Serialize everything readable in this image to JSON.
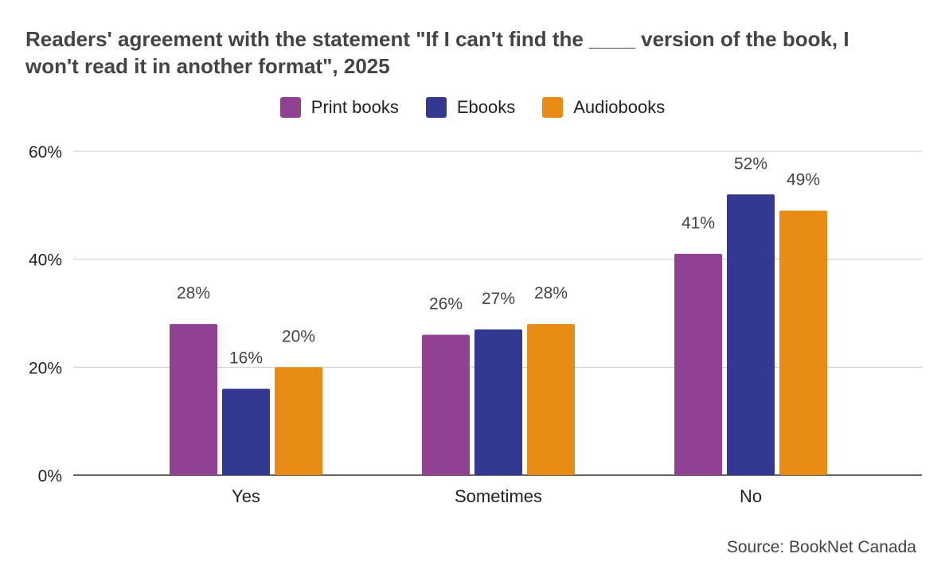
{
  "chart_data": {
    "type": "bar",
    "title": "Readers' agreement with the statement \"If I can't find the ____ version of the book, I won't read it in another format\", 2025",
    "categories": [
      "Yes",
      "Sometimes",
      "No"
    ],
    "series": [
      {
        "name": "Print books",
        "color": "#914192",
        "values": [
          28,
          26,
          41
        ],
        "labels": [
          "28%",
          "26%",
          "41%"
        ]
      },
      {
        "name": "Ebooks",
        "color": "#353891",
        "values": [
          16,
          27,
          52
        ],
        "labels": [
          "16%",
          "27%",
          "52%"
        ]
      },
      {
        "name": "Audiobooks",
        "color": "#e88c15",
        "values": [
          20,
          28,
          49
        ],
        "labels": [
          "20%",
          "28%",
          "49%"
        ]
      }
    ],
    "ylim": [
      0,
      60
    ],
    "yticks": [
      0,
      20,
      40,
      60
    ],
    "ytick_labels": [
      "0%",
      "20%",
      "40%",
      "60%"
    ],
    "grid": true,
    "legend": "top-center",
    "source": "Source: BookNet Canada"
  }
}
